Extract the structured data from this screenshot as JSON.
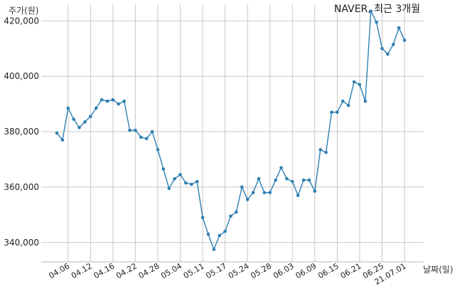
{
  "chart_data": {
    "type": "line",
    "title": "NAVER, 최근 3개월",
    "ylabel": "주가(원)",
    "xlabel": "날짜(일)",
    "ylim": [
      333000,
      426000
    ],
    "yticks": [
      340000,
      360000,
      380000,
      400000,
      420000
    ],
    "ytick_labels": [
      "340,000",
      "360,000",
      "380,000",
      "400,000",
      "420,000"
    ],
    "xtick_labels": [
      "04.06",
      "04.12",
      "04.16",
      "04.22",
      "04.28",
      "05.04",
      "05.11",
      "05.17",
      "05.24",
      "05.28",
      "06.03",
      "06.09",
      "06.15",
      "06.21",
      "06.25",
      "21.07.01"
    ],
    "xtick_index": [
      2,
      6,
      10,
      14,
      18,
      22,
      26,
      30,
      34,
      38,
      42,
      46,
      50,
      54,
      58,
      62
    ],
    "grid": true,
    "series": [
      {
        "color": "#2e7fb3",
        "values": [
          379500,
          377000,
          388500,
          384500,
          381500,
          383500,
          385500,
          388500,
          391500,
          391000,
          391500,
          390000,
          391000,
          380500,
          380500,
          378000,
          377500,
          380000,
          373500,
          366500,
          359500,
          363000,
          364500,
          361500,
          361000,
          362000,
          349000,
          343000,
          337500,
          342500,
          344000,
          349500,
          351000,
          360000,
          355500,
          358000,
          363000,
          358000,
          358000,
          362500,
          367000,
          363000,
          362000,
          357000,
          362500,
          362500,
          358500,
          373500,
          372500,
          387000,
          387000,
          391000,
          389500,
          398000,
          397000,
          391000,
          423500,
          419500,
          410000,
          408000,
          411500,
          417500,
          413000
        ]
      }
    ]
  }
}
